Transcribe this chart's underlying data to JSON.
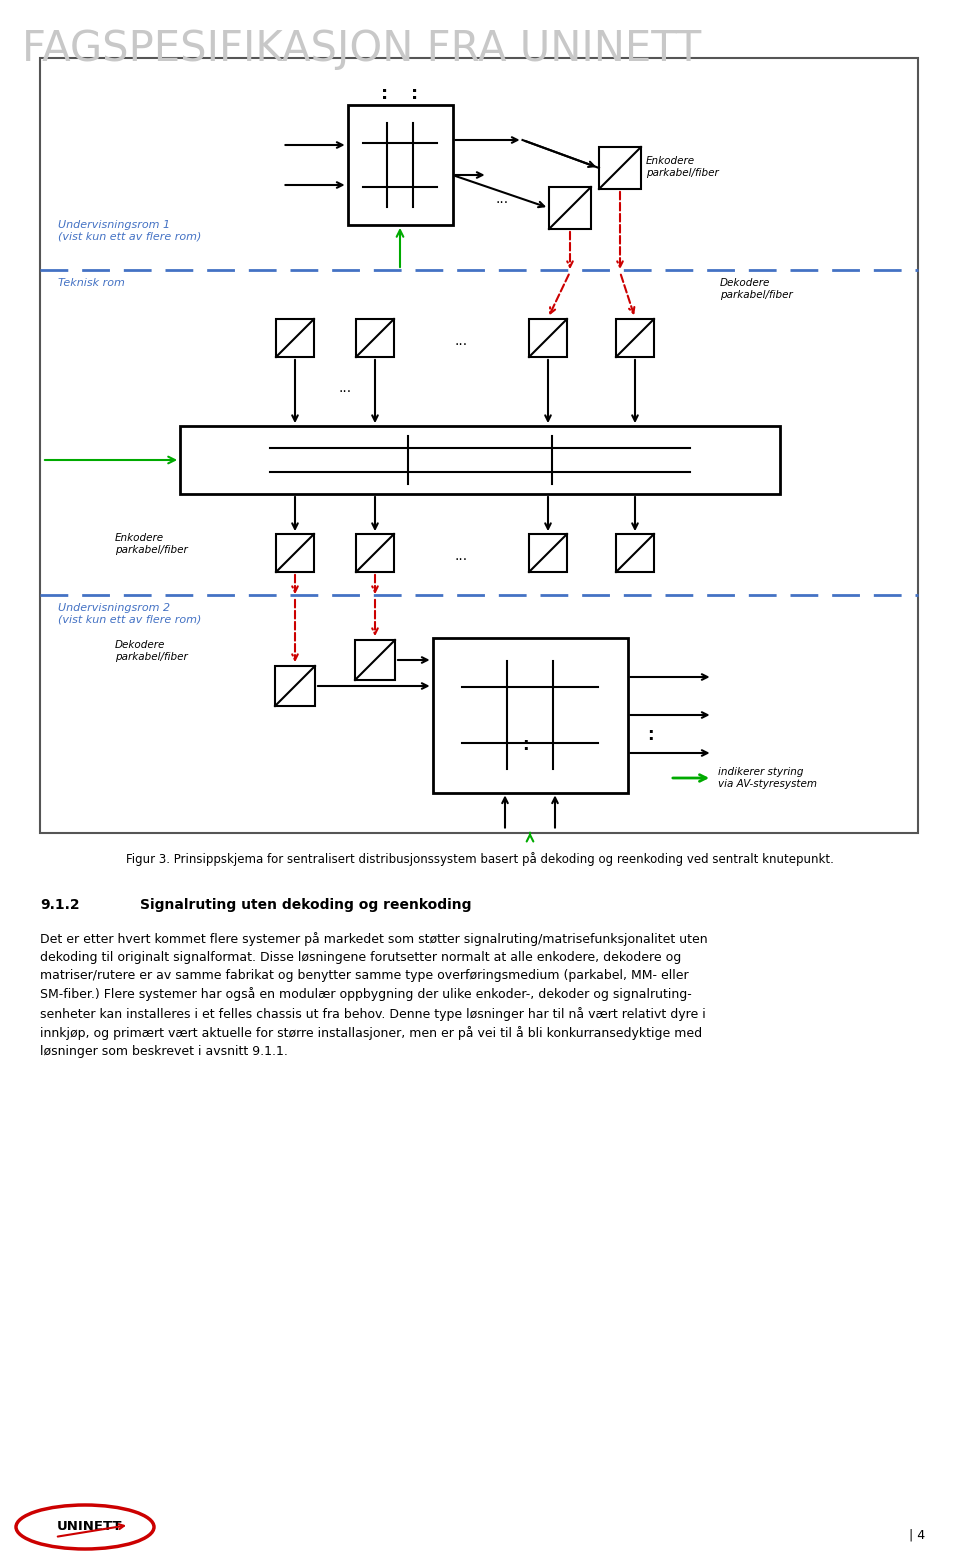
{
  "page_width": 9.6,
  "page_height": 15.67,
  "bg_color": "#ffffff",
  "header_text": "FAGSPESIFIKASJON FRA UNINETT",
  "header_color": "#c8c8c8",
  "header_fontsize": 30,
  "dashed_line_color": "#4472C4",
  "green_color": "#00AA00",
  "red_color": "#CC0000",
  "black_color": "#000000",
  "label_undervisning1": "Undervisningsrom 1\n(vist kun ett av flere rom)",
  "label_teknisk": "Teknisk rom",
  "label_enkodere_top": "Enkodere\nparkabel/fiber",
  "label_dekodere_top": "Dekodere\nparkabel/fiber",
  "label_enkodere_mid": "Enkodere\nparkabel/fiber",
  "label_dekodere_bot": "Dekodere\nparkabel/fiber",
  "label_undervisning2": "Undervisningsrom 2\n(vist kun ett av flere rom)",
  "label_indikerer": "indikerer styring\nvia AV-styresystem",
  "figure_caption": "Figur 3. Prinsippskjema for sentralisert distribusjonssystem basert på dekoding og reenkoding ved sentralt knutepunkt.",
  "section_num": "9.1.2",
  "section_title": "Signalruting uten dekoding og reenkoding",
  "body_text": "Det er etter hvert kommet flere systemer på markedet som støtter signalruting/matrisefunksjonalitet uten\ndekoding til originalt signalformat. Disse løsningene forutsetter normalt at alle enkodere, dekodere og\nmatriser/rutere er av samme fabrikat og benytter samme type overføringsmedium (parkabel, MM- eller\nSM-fiber.) Flere systemer har også en modulær oppbygning der ulike enkoder-, dekoder og signalruting-\nsenheter kan installeres i et felles chassis ut fra behov. Denne type løsninger har til nå vært relativt dyre i\ninnkjøp, og primært vært aktuelle for større installasjoner, men er på vei til å bli konkurransedyktige med\nløsninger som beskrevet i avsnitt 9.1.1.",
  "page_number": "| 4"
}
